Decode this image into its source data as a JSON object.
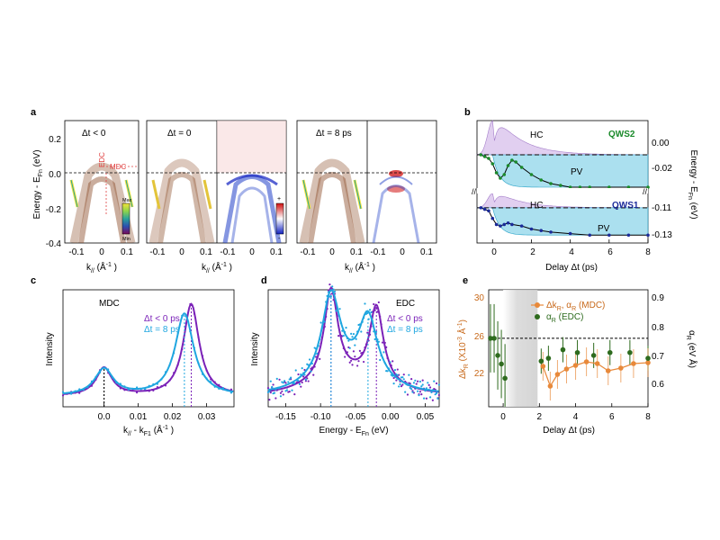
{
  "panels": {
    "a": {
      "label": "a",
      "ylabel": "Energy - E",
      "ylabel_sub": "Fn",
      "ylabel_unit": "(eV)",
      "yticks": [
        "0.2",
        "0.0",
        "-0.2",
        "-0.4"
      ],
      "xticks": [
        "-0.1",
        "0",
        "0.1"
      ],
      "xlabel": "k",
      "xlabel_sub": "//",
      "xlabel_unit": "(Å",
      "xlabel_unit_sup": "-1",
      "xlabel_close": ")",
      "titles": [
        "Δt < 0",
        "Δt = 0",
        "Δt = 8 ps"
      ],
      "edc_label": "EDC",
      "mdc_label": "MDC",
      "cbar1": {
        "max": "Max",
        "min": "Min",
        "colors": [
          "#7a0a5a",
          "#2b4fb0",
          "#2aa39a",
          "#8fd44a",
          "#f2e33a"
        ]
      },
      "cbar2": {
        "plus": "+",
        "minus": "-",
        "colors": [
          "#d01010",
          "#ffffff",
          "#1020c0"
        ]
      }
    },
    "b": {
      "label": "b",
      "hc_label": "HC",
      "pv_label": "PV",
      "qws2_label": "QWS2",
      "qws1_label": "QWS1",
      "qws2_color": "#1a8a2a",
      "qws1_color": "#1a2a9a",
      "xlabel": "Delay Δt (ps)",
      "ylabel": "Energy - E",
      "ylabel_sub": "Fn",
      "ylabel_unit": "(eV)",
      "xticks": [
        "0",
        "2",
        "4",
        "6",
        "8"
      ],
      "yticks_top": [
        "0.00",
        "-0.02"
      ],
      "yticks_bottom": [
        "-0.11",
        "-0.13"
      ],
      "hc_color": "#c9a8e4",
      "pv_color": "#8fd6ea"
    },
    "c": {
      "label": "c",
      "title": "MDC",
      "ylabel": "Intensity",
      "xlabel": "k",
      "xlabel_sub": "//",
      "xlabel_mid": " - k",
      "xlabel_sub2": "F1",
      "xlabel_unit": "(Å",
      "xlabel_unit_sup": "-1",
      "xlabel_close": ")",
      "xticks": [
        "0.0",
        "0.01",
        "0.02",
        "0.03"
      ],
      "legend": [
        "Δt < 0 ps",
        "Δt = 8 ps"
      ],
      "colors": [
        "#7b22b8",
        "#1fa6e0"
      ]
    },
    "d": {
      "label": "d",
      "title": "EDC",
      "ylabel": "Intensity",
      "xlabel": "Energy - E",
      "xlabel_sub": "Fn",
      "xlabel_unit": "(eV)",
      "xticks": [
        "-0.15",
        "-0.10",
        "-0.05",
        "0.00",
        "0.05"
      ],
      "legend": [
        "Δt < 0 ps",
        "Δt = 8 ps"
      ],
      "colors": [
        "#7b22b8",
        "#1fa6e0"
      ]
    },
    "e": {
      "label": "e",
      "ylabel_left": "Δk",
      "ylabel_left_sub": "R",
      "ylabel_left_unit": "(X10",
      "ylabel_left_sup": "-3",
      "ylabel_left_unit2": "Å",
      "ylabel_left_sup2": "-1",
      "ylabel_left_close": ")",
      "ylabel_right": "α",
      "ylabel_right_sub": "R",
      "ylabel_right_unit": "(eV Å)",
      "xlabel": "Delay Δt (ps)",
      "xticks": [
        "0",
        "2",
        "4",
        "6",
        "8"
      ],
      "yticks_left": [
        "30",
        "26",
        "22"
      ],
      "yticks_right": [
        "0.9",
        "0.8",
        "0.7",
        "0.6"
      ],
      "legend1": "Δk",
      "legend1_sub": "R",
      "legend1_mid": ", α",
      "legend1_sub2": "R",
      "legend1_tag": "(MDC)",
      "legend2": "α",
      "legend2_sub": "R",
      "legend2_tag": "(EDC)",
      "orange": "#e8893a",
      "green": "#2e6b1e",
      "left_axis_color": "#c8691a"
    }
  },
  "chart_data": [
    {
      "type": "line",
      "panel": "b",
      "xlabel": "Delay Δt (ps)",
      "ylabel": "Energy - EFn (eV)",
      "xlim": [
        -0.8,
        8
      ],
      "series": [
        {
          "name": "QWS2",
          "x": [
            -0.6,
            -0.4,
            -0.2,
            0,
            0.2,
            0.4,
            0.6,
            0.8,
            1.0,
            1.2,
            1.5,
            2.0,
            2.5,
            3.0,
            3.5,
            4.0,
            4.5,
            5.0,
            6.0,
            7.0,
            8.0
          ],
          "values": [
            -0.01,
            -0.011,
            -0.012,
            -0.015,
            -0.02,
            -0.023,
            -0.021,
            -0.016,
            -0.013,
            -0.014,
            -0.017,
            -0.021,
            -0.024,
            -0.026,
            -0.027,
            -0.028,
            -0.028,
            -0.028,
            -0.028,
            -0.028,
            -0.028
          ]
        },
        {
          "name": "QWS1",
          "x": [
            -0.6,
            -0.4,
            -0.2,
            0,
            0.2,
            0.4,
            0.6,
            0.8,
            1.0,
            1.5,
            2.0,
            2.5,
            3.0,
            4.0,
            5.0,
            6.0,
            7.0,
            8.0
          ],
          "values": [
            -0.11,
            -0.111,
            -0.112,
            -0.117,
            -0.121,
            -0.122,
            -0.121,
            -0.12,
            -0.121,
            -0.122,
            -0.124,
            -0.125,
            -0.126,
            -0.127,
            -0.128,
            -0.128,
            -0.128,
            -0.128
          ]
        }
      ]
    },
    {
      "type": "line",
      "panel": "c",
      "xlabel": "k// - kF1 (Å-1)",
      "ylabel": "Intensity",
      "xlim": [
        -0.012,
        0.038
      ],
      "series": [
        {
          "name": "Δt < 0 ps",
          "peaks": [
            [
              0.0,
              0.23
            ],
            [
              0.0255,
              0.76
            ]
          ],
          "width": 0.0028
        },
        {
          "name": "Δt = 8 ps",
          "peaks": [
            [
              0.0,
              0.22
            ],
            [
              0.0235,
              0.68
            ]
          ],
          "width": 0.0033
        }
      ]
    },
    {
      "type": "line",
      "panel": "d",
      "xlabel": "Energy - EFn (eV)",
      "ylabel": "Intensity",
      "xlim": [
        -0.175,
        0.07
      ],
      "series": [
        {
          "name": "Δt < 0 ps",
          "peaks": [
            [
              -0.085,
              0.72
            ],
            [
              -0.02,
              0.6
            ]
          ],
          "width": 0.012
        },
        {
          "name": "Δt = 8 ps",
          "peaks": [
            [
              -0.085,
              0.68
            ],
            [
              -0.032,
              0.5
            ]
          ],
          "width": 0.016
        }
      ]
    },
    {
      "type": "scatter",
      "panel": "e",
      "xlabel": "Delay Δt (ps)",
      "xlim": [
        -0.8,
        8
      ],
      "series": [
        {
          "name": "Δk_R, α_R (MDC)",
          "axis": "left",
          "ylim": [
            18,
            31
          ],
          "x": [
            2.2,
            2.6,
            3.0,
            3.5,
            4.0,
            4.6,
            5.2,
            5.8,
            6.5,
            7.2,
            8.0
          ],
          "values": [
            22.5,
            20.3,
            21.6,
            22.2,
            22.6,
            23.0,
            22.8,
            22.0,
            22.3,
            22.8,
            22.9
          ]
        },
        {
          "name": "α_R (EDC)",
          "axis": "right",
          "ylim": [
            0.52,
            0.93
          ],
          "x": [
            -0.7,
            -0.5,
            -0.3,
            -0.1,
            0.1,
            2.1,
            2.5,
            3.3,
            4.1,
            5.0,
            5.9,
            7.0,
            8.0
          ],
          "values": [
            0.76,
            0.76,
            0.7,
            0.67,
            0.62,
            0.68,
            0.69,
            0.72,
            0.71,
            0.7,
            0.71,
            0.71,
            0.69
          ]
        }
      ],
      "reference_line": 0.76
    }
  ]
}
